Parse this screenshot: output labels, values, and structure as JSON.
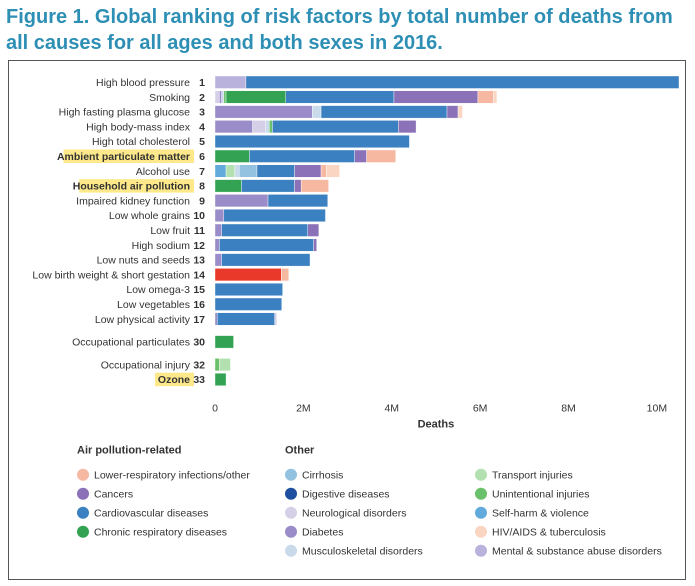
{
  "title": "Figure 1. Global ranking of risk factors by total number of deaths from all causes for all ages and both sexes in 2016.",
  "colors": {
    "lri": "#f7b8a2",
    "cancers": "#8b72b8",
    "cardio": "#3b80c0",
    "respiratory": "#33a353",
    "cirrhosis": "#93c2e0",
    "digestive": "#1f4fa0",
    "neuro": "#d5d0e8",
    "diabetes": "#9a8cc8",
    "musculo": "#c9dbeb",
    "transport": "#b3e0b0",
    "unintentional": "#6bc06b",
    "selfharm": "#62aadb",
    "hiv": "#f9d5c2",
    "mental": "#b8b2dc",
    "bw": "#e8392b",
    "highlight": "#fde98a"
  },
  "chart_data": {
    "type": "bar",
    "orientation": "horizontal",
    "stacked": true,
    "xlabel": "Deaths",
    "xlim": [
      0,
      10500000
    ],
    "ticks": [
      {
        "value": 0,
        "label": "0"
      },
      {
        "value": 2000000,
        "label": "2M"
      },
      {
        "value": 4000000,
        "label": "4M"
      },
      {
        "value": 6000000,
        "label": "6M"
      },
      {
        "value": 8000000,
        "label": "8M"
      },
      {
        "value": 10000000,
        "label": "10M"
      }
    ],
    "grid": false,
    "rows": [
      {
        "label": "High blood pressure",
        "rank": "1",
        "highlight": false,
        "segments": [
          {
            "cause": "mental",
            "value": 700000
          },
          {
            "cause": "cardio",
            "value": 9800000
          }
        ]
      },
      {
        "label": "Smoking",
        "rank": "2",
        "highlight": false,
        "segments": [
          {
            "cause": "neuro",
            "value": 100000
          },
          {
            "cause": "diabetes",
            "value": 50000
          },
          {
            "cause": "musculo",
            "value": 50000
          },
          {
            "cause": "unintentional",
            "value": 50000
          },
          {
            "cause": "respiratory",
            "value": 1350000
          },
          {
            "cause": "cardio",
            "value": 2450000
          },
          {
            "cause": "cancers",
            "value": 1900000
          },
          {
            "cause": "lri",
            "value": 350000
          },
          {
            "cause": "hiv",
            "value": 80000
          }
        ]
      },
      {
        "label": "High fasting plasma glucose",
        "rank": "3",
        "highlight": false,
        "segments": [
          {
            "cause": "diabetes",
            "value": 2200000
          },
          {
            "cause": "musculo",
            "value": 200000
          },
          {
            "cause": "cardio",
            "value": 2850000
          },
          {
            "cause": "cancers",
            "value": 250000
          },
          {
            "cause": "hiv",
            "value": 100000
          }
        ]
      },
      {
        "label": "High body-mass index",
        "rank": "4",
        "highlight": false,
        "segments": [
          {
            "cause": "diabetes",
            "value": 850000
          },
          {
            "cause": "neuro",
            "value": 300000
          },
          {
            "cause": "musculo",
            "value": 80000
          },
          {
            "cause": "unintentional",
            "value": 70000
          },
          {
            "cause": "cardio",
            "value": 2850000
          },
          {
            "cause": "cancers",
            "value": 400000
          }
        ]
      },
      {
        "label": "High total cholesterol",
        "rank": "5",
        "highlight": false,
        "segments": [
          {
            "cause": "cardio",
            "value": 4400000
          }
        ]
      },
      {
        "label": "Ambient particulate matter",
        "rank": "6",
        "highlight": true,
        "segments": [
          {
            "cause": "respiratory",
            "value": 780000
          },
          {
            "cause": "cardio",
            "value": 2380000
          },
          {
            "cause": "cancers",
            "value": 270000
          },
          {
            "cause": "lri",
            "value": 660000
          }
        ]
      },
      {
        "label": "Alcohol use",
        "rank": "7",
        "highlight": false,
        "segments": [
          {
            "cause": "selfharm",
            "value": 250000
          },
          {
            "cause": "transport",
            "value": 200000
          },
          {
            "cause": "musculo",
            "value": 100000
          },
          {
            "cause": "cirrhosis",
            "value": 400000
          },
          {
            "cause": "cardio",
            "value": 850000
          },
          {
            "cause": "cancers",
            "value": 600000
          },
          {
            "cause": "lri",
            "value": 120000
          },
          {
            "cause": "hiv",
            "value": 300000
          }
        ]
      },
      {
        "label": "Household air pollution",
        "rank": "8",
        "highlight": true,
        "segments": [
          {
            "cause": "respiratory",
            "value": 600000
          },
          {
            "cause": "cardio",
            "value": 1200000
          },
          {
            "cause": "cancers",
            "value": 150000
          },
          {
            "cause": "lri",
            "value": 620000
          }
        ]
      },
      {
        "label": "Impaired kidney function",
        "rank": "9",
        "highlight": false,
        "segments": [
          {
            "cause": "diabetes",
            "value": 1200000
          },
          {
            "cause": "cardio",
            "value": 1350000
          }
        ]
      },
      {
        "label": "Low whole grains",
        "rank": "10",
        "highlight": false,
        "segments": [
          {
            "cause": "diabetes",
            "value": 200000
          },
          {
            "cause": "cardio",
            "value": 2300000
          }
        ]
      },
      {
        "label": "Low fruit",
        "rank": "11",
        "highlight": false,
        "segments": [
          {
            "cause": "diabetes",
            "value": 150000
          },
          {
            "cause": "cardio",
            "value": 1950000
          },
          {
            "cause": "cancers",
            "value": 250000
          }
        ]
      },
      {
        "label": "High sodium",
        "rank": "12",
        "highlight": false,
        "segments": [
          {
            "cause": "diabetes",
            "value": 100000
          },
          {
            "cause": "cardio",
            "value": 2130000
          },
          {
            "cause": "cancers",
            "value": 70000
          }
        ]
      },
      {
        "label": "Low nuts and seeds",
        "rank": "13",
        "highlight": false,
        "segments": [
          {
            "cause": "diabetes",
            "value": 150000
          },
          {
            "cause": "cardio",
            "value": 2000000
          }
        ]
      },
      {
        "label": "Low birth weight & short gestation",
        "rank": "14",
        "highlight": false,
        "segments": [
          {
            "cause": "bw",
            "value": 1500000
          },
          {
            "cause": "lri",
            "value": 170000
          }
        ]
      },
      {
        "label": "Low omega-3",
        "rank": "15",
        "highlight": false,
        "segments": [
          {
            "cause": "cardio",
            "value": 1530000
          }
        ]
      },
      {
        "label": "Low vegetables",
        "rank": "16",
        "highlight": false,
        "segments": [
          {
            "cause": "cardio",
            "value": 1510000
          }
        ]
      },
      {
        "label": "Low physical activity",
        "rank": "17",
        "highlight": false,
        "segments": [
          {
            "cause": "diabetes",
            "value": 50000
          },
          {
            "cause": "cardio",
            "value": 1300000
          },
          {
            "cause": "neuro",
            "value": 50000
          }
        ]
      },
      {
        "label": "Occupational particulates",
        "rank": "30",
        "highlight": false,
        "gap_before": true,
        "segments": [
          {
            "cause": "respiratory",
            "value": 420000
          }
        ]
      },
      {
        "label": "Occupational injury",
        "rank": "32",
        "highlight": false,
        "gap_before": true,
        "segments": [
          {
            "cause": "unintentional",
            "value": 100000
          },
          {
            "cause": "transport",
            "value": 250000
          }
        ]
      },
      {
        "label": "Ozone",
        "rank": "33",
        "highlight": true,
        "segments": [
          {
            "cause": "respiratory",
            "value": 250000
          }
        ]
      }
    ]
  },
  "legend": {
    "groups": [
      {
        "heading": "Air pollution-related",
        "items": [
          {
            "cause": "lri",
            "label": "Lower-respiratory infections/other"
          },
          {
            "cause": "cancers",
            "label": "Cancers"
          },
          {
            "cause": "cardio",
            "label": "Cardiovascular diseases"
          },
          {
            "cause": "respiratory",
            "label": "Chronic respiratory diseases"
          }
        ]
      },
      {
        "heading": "Other",
        "items": [
          {
            "cause": "cirrhosis",
            "label": "Cirrhosis"
          },
          {
            "cause": "digestive",
            "label": "Digestive diseases"
          },
          {
            "cause": "neuro",
            "label": "Neurological disorders"
          },
          {
            "cause": "diabetes",
            "label": "Diabetes"
          },
          {
            "cause": "musculo",
            "label": "Musculoskeletal disorders"
          }
        ]
      },
      {
        "heading": "",
        "items": [
          {
            "cause": "transport",
            "label": "Transport injuries"
          },
          {
            "cause": "unintentional",
            "label": "Unintentional injuries"
          },
          {
            "cause": "selfharm",
            "label": "Self-harm & violence"
          },
          {
            "cause": "hiv",
            "label": "HIV/AIDS & tuberculosis"
          },
          {
            "cause": "mental",
            "label": "Mental & substance abuse disorders"
          }
        ]
      }
    ]
  }
}
